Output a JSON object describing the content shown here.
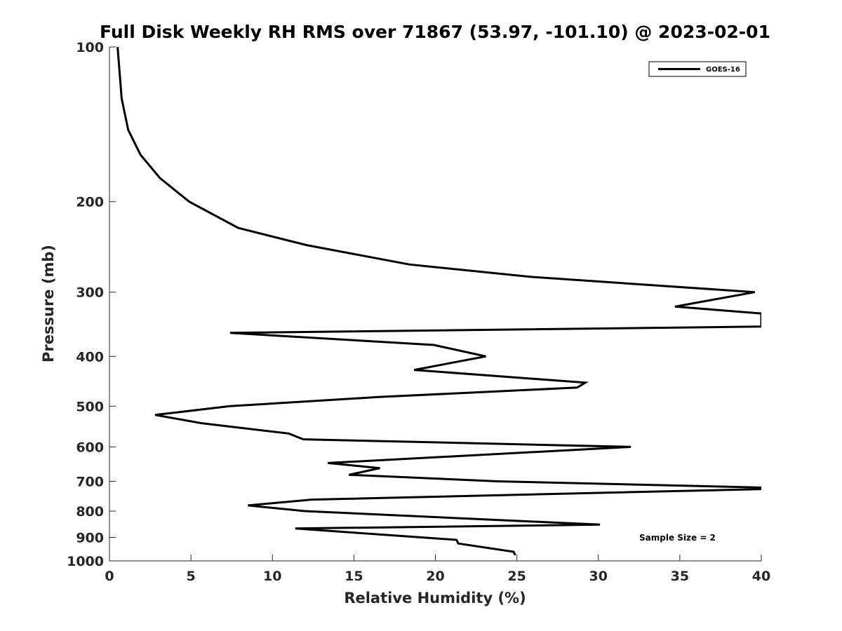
{
  "chart_data": {
    "type": "line",
    "title": "Full Disk Weekly RH RMS over 71867 (53.97, -101.10) @ 2023-02-01",
    "xlabel": "Relative Humidity (%)",
    "ylabel": "Pressure (mb)",
    "xlim": [
      0,
      40
    ],
    "ylim": [
      100,
      1000
    ],
    "y_scale": "log",
    "y_reversed": true,
    "grid": false,
    "legend_position": "top-right",
    "x_ticks": [
      0,
      5,
      10,
      15,
      20,
      25,
      30,
      35,
      40
    ],
    "y_ticks": [
      100,
      200,
      300,
      400,
      500,
      600,
      700,
      800,
      900,
      1000
    ],
    "series": [
      {
        "name": "GOES-16",
        "color": "#000000",
        "points": [
          [
            24.9,
            975
          ],
          [
            24.8,
            960
          ],
          [
            21.4,
            925
          ],
          [
            21.3,
            910
          ],
          [
            11.4,
            865
          ],
          [
            30.1,
            850
          ],
          [
            12.0,
            800
          ],
          [
            8.5,
            780
          ],
          [
            12.4,
            760
          ],
          [
            40.0,
            725
          ],
          [
            40.0,
            720
          ],
          [
            23.8,
            700
          ],
          [
            14.7,
            680
          ],
          [
            16.6,
            660
          ],
          [
            13.4,
            645
          ],
          [
            32.0,
            600
          ],
          [
            11.9,
            580
          ],
          [
            11.0,
            565
          ],
          [
            5.7,
            540
          ],
          [
            2.8,
            520
          ],
          [
            7.4,
            500
          ],
          [
            16.5,
            480
          ],
          [
            28.7,
            460
          ],
          [
            29.2,
            450
          ],
          [
            18.7,
            425
          ],
          [
            23.1,
            400
          ],
          [
            19.9,
            380
          ],
          [
            7.4,
            360
          ],
          [
            40.0,
            350
          ],
          [
            40.0,
            330
          ],
          [
            34.7,
            320
          ],
          [
            39.6,
            300
          ],
          [
            25.8,
            280
          ],
          [
            18.4,
            265
          ],
          [
            12.1,
            243
          ],
          [
            7.9,
            225
          ],
          [
            4.9,
            200
          ],
          [
            3.1,
            180
          ],
          [
            1.9,
            162
          ],
          [
            1.15,
            145
          ],
          [
            0.75,
            126
          ],
          [
            0.5,
            100
          ]
        ]
      }
    ],
    "annotation": "Sample Size = 2"
  }
}
